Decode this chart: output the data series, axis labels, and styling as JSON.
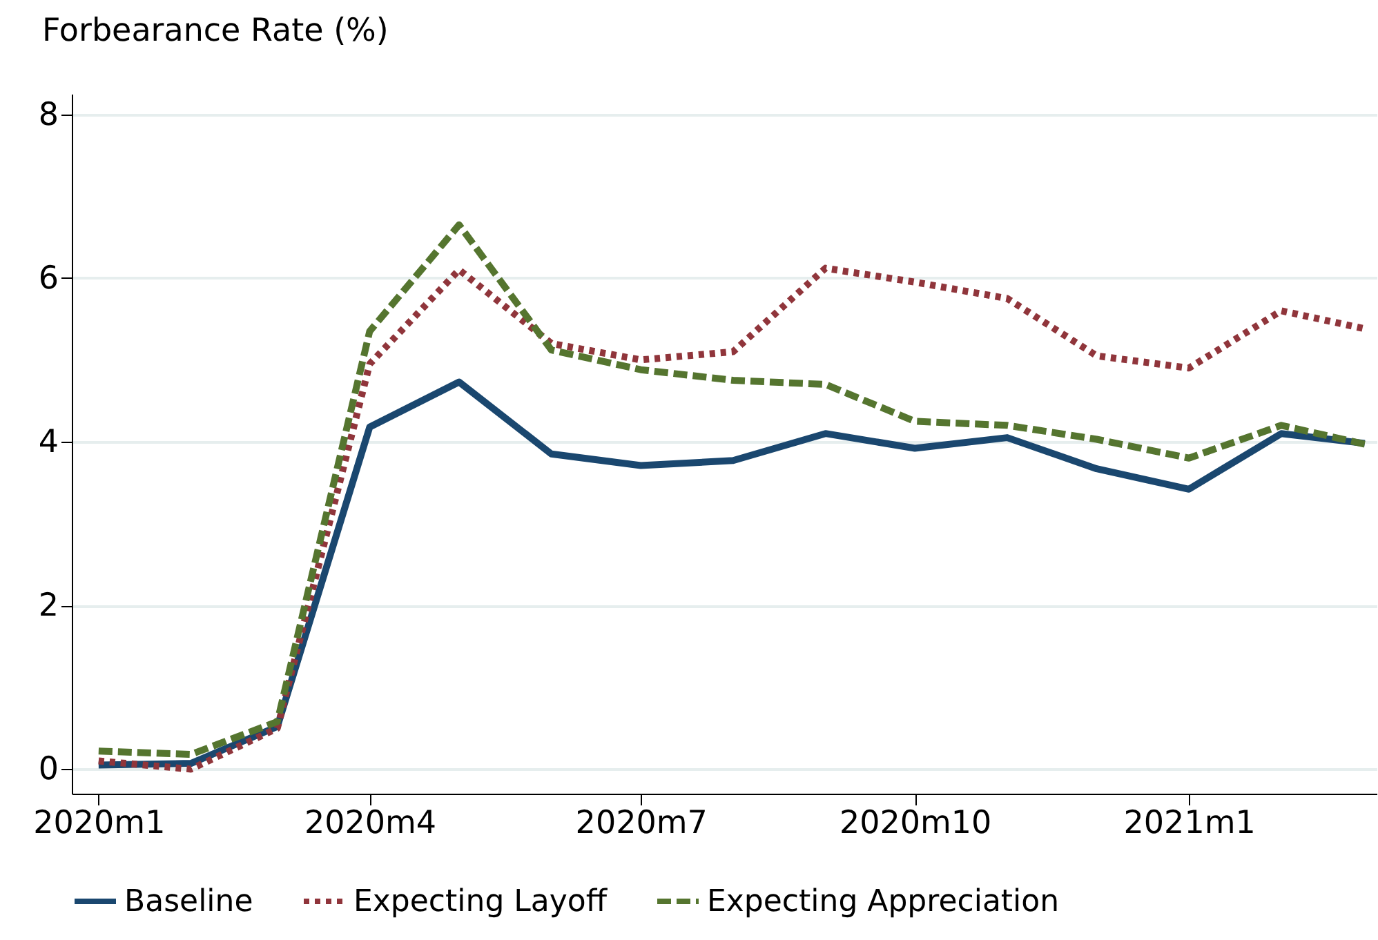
{
  "chart_data": {
    "type": "line",
    "ylabel": "Forbearance Rate (%)",
    "x": [
      "2020-01",
      "2020-02",
      "2020-03",
      "2020-04",
      "2020-05",
      "2020-06",
      "2020-07",
      "2020-08",
      "2020-09",
      "2020-10",
      "2020-11",
      "2020-12",
      "2021-01",
      "2021-02",
      "2021-03"
    ],
    "series": [
      {
        "name": "Baseline",
        "color": "#1a476f",
        "line_style": "solid",
        "values": [
          0.05,
          0.07,
          0.52,
          4.18,
          4.73,
          3.85,
          3.71,
          3.77,
          4.1,
          3.92,
          4.05,
          3.67,
          3.42,
          4.1,
          3.98
        ]
      },
      {
        "name": "Expecting Layoff",
        "color": "#90353b",
        "line_style": "dotted",
        "values": [
          0.1,
          0.0,
          0.5,
          4.95,
          6.1,
          5.2,
          5.0,
          5.1,
          6.12,
          5.95,
          5.75,
          5.05,
          4.9,
          5.6,
          5.38
        ]
      },
      {
        "name": "Expecting Appreciation",
        "color": "#55752f",
        "line_style": "dashed",
        "values": [
          0.22,
          0.18,
          0.58,
          5.35,
          6.65,
          5.12,
          4.88,
          4.75,
          4.7,
          4.25,
          4.2,
          4.03,
          3.8,
          4.2,
          3.97
        ]
      }
    ],
    "xlim": [
      "2019-12-23",
      "2021-03-05"
    ],
    "xticks": [
      {
        "value": "2020-01",
        "label": "2020m1"
      },
      {
        "value": "2020-04",
        "label": "2020m4"
      },
      {
        "value": "2020-07",
        "label": "2020m7"
      },
      {
        "value": "2020-10",
        "label": "2020m10"
      },
      {
        "value": "2021-01",
        "label": "2021m1"
      }
    ],
    "ylim": [
      -0.3,
      8.25
    ],
    "yticks": [
      0,
      2,
      4,
      6,
      8
    ],
    "grid": "y",
    "legend": "bottom",
    "marker": "none"
  }
}
